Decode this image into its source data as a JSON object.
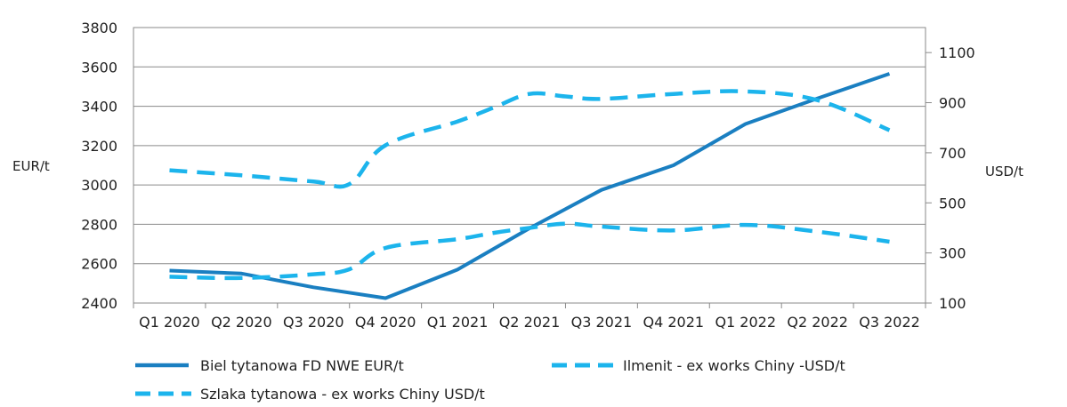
{
  "chart_data": {
    "type": "line",
    "categories": [
      "Q1 2020",
      "Q2 2020",
      "Q3 2020",
      "Q4 2020",
      "Q1 2021",
      "Q2 2021",
      "Q3 2021",
      "Q4 2021",
      "Q1 2022",
      "Q2 2022",
      "Q3 2022"
    ],
    "y_left": {
      "label": "EUR/t",
      "lim": [
        2400,
        3800
      ],
      "ticks": [
        2400,
        2600,
        2800,
        3000,
        3200,
        3400,
        3600,
        3800
      ]
    },
    "y_right": {
      "label": "USD/t",
      "lim": [
        100,
        1200
      ],
      "ticks": [
        100,
        300,
        500,
        700,
        900,
        1100
      ]
    },
    "grid": true,
    "legend_position": "bottom",
    "series": [
      {
        "name": "Biel tytanowa FD NWE EUR/t",
        "axis": "left",
        "style": "solid",
        "color": "#1a7fc1",
        "x": [
          0,
          1,
          2,
          3,
          4,
          5,
          6,
          7,
          8,
          9,
          10
        ],
        "values": [
          2565,
          2550,
          2480,
          2425,
          2570,
          2780,
          2975,
          3100,
          3310,
          3440,
          3565
        ]
      },
      {
        "name": "Ilmenit - ex works Chiny -USD/t",
        "axis": "right",
        "style": "dashed",
        "color": "#1cb4ec",
        "x": [
          0,
          1,
          2,
          2.5,
          3,
          4,
          4.5,
          5,
          5.5,
          6,
          7,
          8,
          9,
          10
        ],
        "values": [
          205,
          200,
          215,
          235,
          320,
          355,
          380,
          400,
          417,
          405,
          390,
          412,
          385,
          345
        ]
      },
      {
        "name": "Szlaka tytanowa - ex works Chiny USD/t",
        "axis": "right",
        "style": "dashed",
        "color": "#1cb4ec",
        "x": [
          0,
          1,
          2,
          2.5,
          3,
          4,
          4.5,
          5,
          5.5,
          6,
          7,
          8,
          9,
          10
        ],
        "values": [
          630,
          610,
          585,
          575,
          730,
          825,
          880,
          935,
          925,
          915,
          935,
          945,
          910,
          790
        ]
      }
    ]
  }
}
